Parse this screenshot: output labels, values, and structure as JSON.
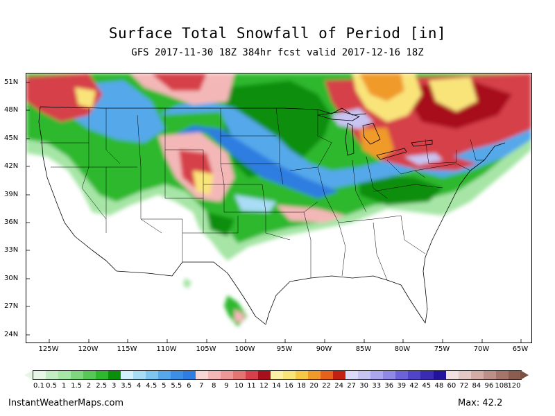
{
  "header": {
    "title": "Surface Total Snowfall of Period [in]",
    "subtitle": "GFS 2017-11-30 18Z 384hr fcst valid 2017-12-16 18Z"
  },
  "map": {
    "lat_labels": [
      "51N",
      "48N",
      "45N",
      "42N",
      "39N",
      "36N",
      "33N",
      "30N",
      "27N",
      "24N"
    ],
    "lon_labels": [
      "125W",
      "120W",
      "115W",
      "110W",
      "105W",
      "100W",
      "95W",
      "90W",
      "85W",
      "80W",
      "75W",
      "70W",
      "65W"
    ],
    "snow_colors": {
      "light_green": "#a6e5a6",
      "green": "#2eb82e",
      "dark_green": "#0a8f0a",
      "light_blue": "#a9dcf5",
      "blue": "#2f7de0",
      "pink": "#f4b7b7",
      "red": "#d6404a",
      "dark_red": "#a80f1c",
      "yellow": "#f9e47a",
      "orange": "#f09a2a",
      "lavender": "#c8c4f2"
    }
  },
  "colorbar": {
    "labels": [
      "0.1",
      "0.5",
      "1",
      "1.5",
      "2",
      "2.5",
      "3",
      "3.5",
      "4",
      "4.5",
      "5",
      "5.5",
      "6",
      "7",
      "8",
      "9",
      "10",
      "11",
      "12",
      "14",
      "16",
      "18",
      "20",
      "22",
      "24",
      "27",
      "30",
      "33",
      "36",
      "39",
      "42",
      "45",
      "48",
      "60",
      "72",
      "84",
      "96",
      "108",
      "120"
    ],
    "colors": [
      "#e8f6e8",
      "#c4ecc4",
      "#a6e5a6",
      "#7fd67f",
      "#57c757",
      "#2eb82e",
      "#0a8f0a",
      "#d3f0fb",
      "#a9dcf5",
      "#7ec6f0",
      "#55a8ea",
      "#3b8fe4",
      "#2f7de0",
      "#f7d6d6",
      "#f4b7b7",
      "#ec9797",
      "#e27474",
      "#d6404a",
      "#a80f1c",
      "#fcf0a6",
      "#f9e47a",
      "#f5c846",
      "#f09a2a",
      "#e6611b",
      "#c22010",
      "#dedbf8",
      "#c8c4f2",
      "#aca6ec",
      "#8f88e4",
      "#6d63d8",
      "#5045c8",
      "#3a2bb3",
      "#22129c",
      "#f0e0e0",
      "#e4c9c6",
      "#d3aca8",
      "#bd8f89",
      "#a6746b",
      "#8b5c50"
    ]
  },
  "footer": {
    "site": "InstantWeatherMaps.com",
    "max_label": "Max:",
    "max_value": "42.2"
  }
}
